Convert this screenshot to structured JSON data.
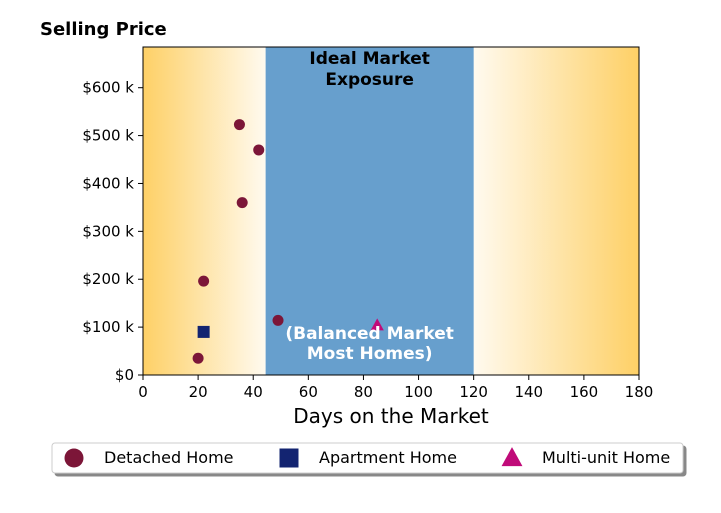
{
  "chart_data": {
    "type": "scatter",
    "title": "Selling Price",
    "xlabel": "Days on the Market",
    "ylabel": "",
    "xlim": [
      0,
      180
    ],
    "ylim": [
      0,
      685
    ],
    "x_ticks": [
      0,
      20,
      40,
      60,
      80,
      100,
      120,
      140,
      160,
      180
    ],
    "x_tick_labels": [
      "0",
      "20",
      "40",
      "60",
      "80",
      "100",
      "120",
      "140",
      "160",
      "180"
    ],
    "y_ticks": [
      0,
      100,
      200,
      300,
      400,
      500,
      600
    ],
    "y_tick_labels": [
      "$0",
      "$100 k",
      "$200 k",
      "$300 k",
      "$400 k",
      "$500 k",
      "$600 k"
    ],
    "y_unit": "thousands of dollars",
    "grid": false,
    "legend_position": "bottom",
    "background": {
      "gradient_colors": [
        "#fed066",
        "#fffaef"
      ],
      "highlight_band": {
        "x_range": [
          44.5,
          120
        ],
        "color": "#679fcd",
        "top_label": [
          "Ideal Market",
          "Exposure"
        ],
        "bottom_label": [
          "(Balanced Market",
          "Most Homes)"
        ],
        "top_label_color": "#000000",
        "bottom_label_color": "#ffffff"
      }
    },
    "series": [
      {
        "name": "Detached Home",
        "marker": "circle",
        "color": "#7c1638",
        "points": [
          [
            20,
            35
          ],
          [
            22,
            196
          ],
          [
            35,
            523
          ],
          [
            36,
            360
          ],
          [
            42,
            470
          ],
          [
            49,
            114
          ]
        ]
      },
      {
        "name": "Apartment Home",
        "marker": "square",
        "color": "#132471",
        "points": [
          [
            22,
            90
          ]
        ]
      },
      {
        "name": "Multi-unit Home",
        "marker": "triangle",
        "color": "#c00b79",
        "points": [
          [
            85,
            104
          ]
        ]
      }
    ]
  }
}
